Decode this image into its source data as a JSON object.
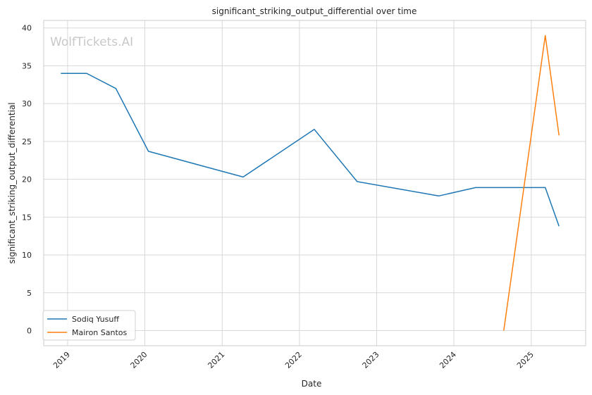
{
  "chart_data": {
    "type": "line",
    "title": "significant_striking_output_differential over time",
    "xlabel": "Date",
    "ylabel": "significant_striking_output_differential",
    "watermark": "WolfTickets.AI",
    "x_ticks": [
      "2019",
      "2020",
      "2021",
      "2022",
      "2023",
      "2024",
      "2025"
    ],
    "y_ticks": [
      0,
      5,
      10,
      15,
      20,
      25,
      30,
      35,
      40
    ],
    "xlim": [
      "2018-09-10",
      "2025-09-15"
    ],
    "ylim": [
      -2,
      41
    ],
    "grid": true,
    "legend_position": "lower-left",
    "series": [
      {
        "name": "Sodiq Yusuff",
        "color": "#1f77b4",
        "points": [
          {
            "x": "2018-11-30",
            "y": 34.0
          },
          {
            "x": "2019-04-01",
            "y": 34.0
          },
          {
            "x": "2019-08-17",
            "y": 32.0
          },
          {
            "x": "2020-01-18",
            "y": 23.7
          },
          {
            "x": "2021-04-10",
            "y": 20.3
          },
          {
            "x": "2022-03-12",
            "y": 26.6
          },
          {
            "x": "2022-10-01",
            "y": 19.7
          },
          {
            "x": "2023-10-21",
            "y": 17.8
          },
          {
            "x": "2024-04-13",
            "y": 18.9
          },
          {
            "x": "2025-03-08",
            "y": 18.9
          },
          {
            "x": "2025-05-12",
            "y": 13.8
          }
        ]
      },
      {
        "name": "Mairon Santos",
        "color": "#ff7f0e",
        "points": [
          {
            "x": "2024-08-24",
            "y": 0.0
          },
          {
            "x": "2025-03-08",
            "y": 39.0
          },
          {
            "x": "2025-05-12",
            "y": 25.8
          }
        ]
      }
    ]
  }
}
